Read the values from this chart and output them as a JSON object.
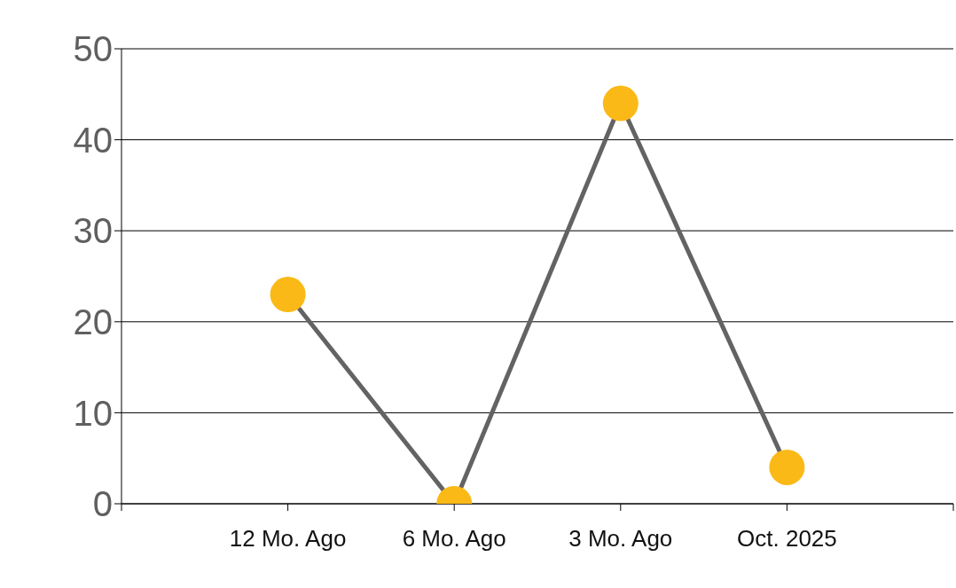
{
  "chart_data": {
    "type": "line",
    "categories": [
      null,
      "12 Mo. Ago",
      "6 Mo. Ago",
      "3 Mo. Ago",
      "Oct. 2025",
      null
    ],
    "series": [
      {
        "color": "#636363",
        "colors": [
          null,
          "#fbb917",
          "#fbb917",
          "#fbb917",
          "#fbb917",
          null
        ],
        "values": [
          null,
          23,
          0,
          44,
          4,
          null
        ]
      }
    ],
    "ylim": [
      0,
      50
    ],
    "yticks": [
      0,
      10,
      20,
      30,
      40,
      50
    ],
    "grid": "y",
    "marker": "circle",
    "line_style": "solid"
  }
}
